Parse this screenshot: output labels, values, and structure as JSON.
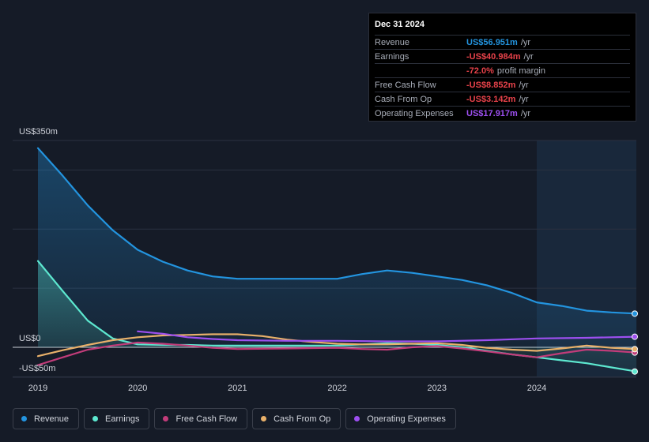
{
  "tooltip": {
    "date": "Dec 31 2024",
    "rows": [
      {
        "label": "Revenue",
        "value": "US$56.951m",
        "unit": "/yr",
        "color": "#2394df"
      },
      {
        "label": "Earnings",
        "value": "-US$40.984m",
        "unit": "/yr",
        "color": "#e8424a"
      },
      {
        "label": "",
        "value": "-72.0%",
        "unit": "profit margin",
        "color": "#e8424a"
      },
      {
        "label": "Free Cash Flow",
        "value": "-US$8.852m",
        "unit": "/yr",
        "color": "#e8424a"
      },
      {
        "label": "Cash From Op",
        "value": "-US$3.142m",
        "unit": "/yr",
        "color": "#e8424a"
      },
      {
        "label": "Operating Expenses",
        "value": "US$17.917m",
        "unit": "/yr",
        "color": "#9d4ff0"
      }
    ]
  },
  "legend": [
    {
      "label": "Revenue",
      "color": "#2394df"
    },
    {
      "label": "Earnings",
      "color": "#5de8d0"
    },
    {
      "label": "Free Cash Flow",
      "color": "#c23c7a"
    },
    {
      "label": "Cash From Op",
      "color": "#e8b06a"
    },
    {
      "label": "Operating Expenses",
      "color": "#9d4ff0"
    }
  ],
  "chart_data": {
    "type": "line",
    "y_tick_labels": [
      "US$350m",
      "US$0",
      "-US$50m"
    ],
    "ylim": [
      -50,
      350
    ],
    "xlim": [
      2018.75,
      2025.0
    ],
    "x_tick_labels": [
      "2019",
      "2020",
      "2021",
      "2022",
      "2023",
      "2024"
    ],
    "x_ticks": [
      2019,
      2020,
      2021,
      2022,
      2023,
      2024
    ],
    "highlight_start": 2024.0,
    "grid": true,
    "legend_position": "bottom",
    "series": [
      {
        "name": "Revenue",
        "color": "#2394df",
        "fill": true,
        "points": [
          [
            2019.0,
            337
          ],
          [
            2019.25,
            290
          ],
          [
            2019.5,
            240
          ],
          [
            2019.75,
            198
          ],
          [
            2020.0,
            165
          ],
          [
            2020.25,
            145
          ],
          [
            2020.5,
            130
          ],
          [
            2020.75,
            120
          ],
          [
            2021.0,
            116
          ],
          [
            2021.25,
            116
          ],
          [
            2021.5,
            116
          ],
          [
            2021.75,
            116
          ],
          [
            2022.0,
            116
          ],
          [
            2022.25,
            124
          ],
          [
            2022.5,
            130
          ],
          [
            2022.75,
            126
          ],
          [
            2023.0,
            120
          ],
          [
            2023.25,
            114
          ],
          [
            2023.5,
            105
          ],
          [
            2023.75,
            92
          ],
          [
            2024.0,
            76
          ],
          [
            2024.25,
            70
          ],
          [
            2024.5,
            62
          ],
          [
            2024.75,
            59
          ],
          [
            2025.0,
            57
          ]
        ]
      },
      {
        "name": "Earnings",
        "color": "#5de8d0",
        "fill": true,
        "points": [
          [
            2019.0,
            146
          ],
          [
            2019.25,
            95
          ],
          [
            2019.5,
            45
          ],
          [
            2019.75,
            15
          ],
          [
            2020.0,
            5
          ],
          [
            2020.25,
            4
          ],
          [
            2020.5,
            4
          ],
          [
            2020.75,
            3
          ],
          [
            2021.0,
            3
          ],
          [
            2021.5,
            3
          ],
          [
            2022.0,
            3
          ],
          [
            2022.25,
            5
          ],
          [
            2022.5,
            7
          ],
          [
            2022.75,
            6
          ],
          [
            2023.0,
            4
          ],
          [
            2023.25,
            0
          ],
          [
            2023.5,
            -6
          ],
          [
            2023.75,
            -12
          ],
          [
            2024.0,
            -17
          ],
          [
            2024.25,
            -22
          ],
          [
            2024.5,
            -27
          ],
          [
            2024.75,
            -34
          ],
          [
            2025.0,
            -41
          ]
        ]
      },
      {
        "name": "Free Cash Flow",
        "color": "#c23c7a",
        "fill": false,
        "points": [
          [
            2019.0,
            -30
          ],
          [
            2019.25,
            -17
          ],
          [
            2019.5,
            -4
          ],
          [
            2019.75,
            3
          ],
          [
            2020.0,
            8
          ],
          [
            2020.25,
            6
          ],
          [
            2020.5,
            3
          ],
          [
            2020.75,
            -1
          ],
          [
            2021.0,
            -3
          ],
          [
            2021.5,
            -2
          ],
          [
            2022.0,
            -1
          ],
          [
            2022.25,
            -3
          ],
          [
            2022.5,
            -4
          ],
          [
            2022.75,
            0
          ],
          [
            2023.0,
            2
          ],
          [
            2023.25,
            -2
          ],
          [
            2023.5,
            -7
          ],
          [
            2023.75,
            -12
          ],
          [
            2024.0,
            -17
          ],
          [
            2024.25,
            -10
          ],
          [
            2024.5,
            -4
          ],
          [
            2024.75,
            -6
          ],
          [
            2025.0,
            -8.852
          ]
        ]
      },
      {
        "name": "Cash From Op",
        "color": "#e8b06a",
        "fill": false,
        "points": [
          [
            2019.0,
            -15
          ],
          [
            2019.25,
            -5
          ],
          [
            2019.5,
            4
          ],
          [
            2019.75,
            12
          ],
          [
            2020.0,
            17
          ],
          [
            2020.25,
            20
          ],
          [
            2020.5,
            21
          ],
          [
            2020.75,
            22
          ],
          [
            2021.0,
            22
          ],
          [
            2021.25,
            19
          ],
          [
            2021.5,
            13
          ],
          [
            2021.75,
            9
          ],
          [
            2022.0,
            6
          ],
          [
            2022.25,
            5
          ],
          [
            2022.5,
            5
          ],
          [
            2022.75,
            6
          ],
          [
            2023.0,
            7
          ],
          [
            2023.25,
            4
          ],
          [
            2023.5,
            -1
          ],
          [
            2023.75,
            -4
          ],
          [
            2024.0,
            -6
          ],
          [
            2024.25,
            -2
          ],
          [
            2024.5,
            3
          ],
          [
            2024.75,
            -1
          ],
          [
            2025.0,
            -3.142
          ]
        ]
      },
      {
        "name": "Operating Expenses",
        "color": "#9d4ff0",
        "fill": false,
        "points": [
          [
            2020.0,
            27
          ],
          [
            2020.25,
            23
          ],
          [
            2020.5,
            17
          ],
          [
            2020.75,
            14
          ],
          [
            2021.0,
            12
          ],
          [
            2021.5,
            11
          ],
          [
            2022.0,
            11
          ],
          [
            2022.5,
            10
          ],
          [
            2023.0,
            10
          ],
          [
            2023.5,
            12
          ],
          [
            2024.0,
            15
          ],
          [
            2024.5,
            16
          ],
          [
            2025.0,
            17.917
          ]
        ]
      }
    ]
  }
}
